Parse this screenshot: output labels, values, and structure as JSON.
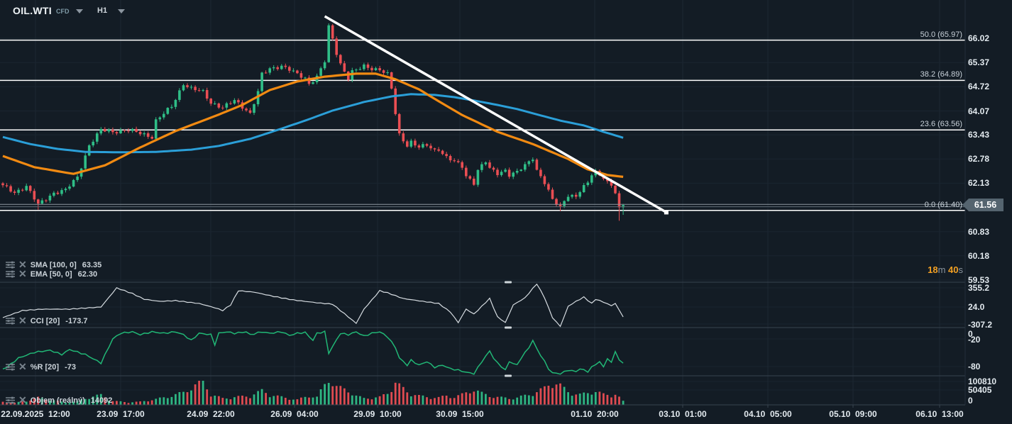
{
  "header": {
    "symbol": "OIL.WTI",
    "cfd_label": "CFD",
    "timeframe": "H1"
  },
  "indicators": {
    "sma": {
      "label": "SMA [100, 0]",
      "value": "63.35"
    },
    "ema": {
      "label": "EMA [50, 0]",
      "value": "62.30"
    },
    "cci": {
      "label": "CCI [20]",
      "value": "-173.7"
    },
    "wpr": {
      "label": "%R [20]",
      "value": "-73"
    },
    "volume": {
      "label": "Objem (reálný)",
      "value": "14092"
    }
  },
  "timer": {
    "min": "18",
    "min_unit": "m",
    "sec": " 40",
    "sec_unit": "s"
  },
  "price_axis": {
    "ticks": [
      "66.02",
      "65.37",
      "64.72",
      "64.07",
      "63.43",
      "62.78",
      "62.13",
      "60.83",
      "60.18",
      "59.53"
    ],
    "current_price": "61.56"
  },
  "cci_axis": [
    "355.2",
    "24.0",
    "-307.2"
  ],
  "wpr_axis": [
    "0",
    "-20",
    "-80"
  ],
  "volume_axis": [
    "100810",
    "50405",
    "0"
  ],
  "time_axis": [
    "22.09.2025  12:00",
    "23.09  17:00",
    "24.09  22:00",
    "26.09  04:00",
    "29.09  10:00",
    "30.09  15:00",
    "01.10  20:00",
    "03.10  01:00",
    "04.10  05:00",
    "05.10  09:00",
    "06.10  13:00"
  ],
  "colors": {
    "background": "#131c25",
    "up": "#2fbe87",
    "down": "#ea4e53",
    "ema": "#f18a12",
    "sma": "#2b9fd8",
    "trendline": "#ffffff",
    "fib": "#ffffff",
    "cci_line": "#d7dde2",
    "wpr_line": "#21b776",
    "grid": "#1d2833",
    "grid_faint": "#1a2530",
    "separator": "#37434e",
    "axis_text": "#e3eaef",
    "timer_accent": "#f2a023",
    "badge_bg": "#55646f",
    "price_line": "#8d97a0"
  },
  "chart_data": {
    "type": "candlestick",
    "symbol": "OIL.WTI",
    "timeframe": "H1",
    "bars": 159,
    "price_range": [
      59.2,
      66.5
    ],
    "close_path": [
      [
        0,
        62.06
      ],
      [
        3,
        61.87
      ],
      [
        6,
        62.06
      ],
      [
        9,
        61.55
      ],
      [
        13,
        61.87
      ],
      [
        16,
        61.95
      ],
      [
        19,
        62.29
      ],
      [
        22,
        63.15
      ],
      [
        25,
        63.56
      ],
      [
        28,
        63.51
      ],
      [
        32,
        63.56
      ],
      [
        35,
        63.47
      ],
      [
        38,
        63.37
      ],
      [
        39,
        63.81
      ],
      [
        43,
        64.19
      ],
      [
        46,
        64.8
      ],
      [
        48,
        64.67
      ],
      [
        51,
        64.58
      ],
      [
        53,
        64.29
      ],
      [
        56,
        64.16
      ],
      [
        59,
        64.35
      ],
      [
        62,
        64.1
      ],
      [
        63,
        64.0
      ],
      [
        65,
        64.58
      ],
      [
        66,
        65.05
      ],
      [
        68,
        65.2
      ],
      [
        71,
        65.28
      ],
      [
        73,
        65.18
      ],
      [
        75,
        65.05
      ],
      [
        77,
        64.95
      ],
      [
        78,
        64.8
      ],
      [
        80,
        64.99
      ],
      [
        82,
        65.4
      ],
      [
        83,
        66.32
      ],
      [
        84,
        66.0
      ],
      [
        85,
        65.62
      ],
      [
        86,
        65.33
      ],
      [
        88,
        64.95
      ],
      [
        89,
        65.12
      ],
      [
        91,
        65.21
      ],
      [
        92,
        65.27
      ],
      [
        94,
        65.21
      ],
      [
        96,
        65.18
      ],
      [
        98,
        65.05
      ],
      [
        99,
        64.67
      ],
      [
        100,
        64.0
      ],
      [
        101,
        63.43
      ],
      [
        103,
        63.15
      ],
      [
        104,
        63.24
      ],
      [
        106,
        63.09
      ],
      [
        108,
        63.15
      ],
      [
        110,
        63.01
      ],
      [
        111,
        63.05
      ],
      [
        113,
        62.82
      ],
      [
        115,
        62.71
      ],
      [
        117,
        62.58
      ],
      [
        118,
        62.33
      ],
      [
        120,
        62.14
      ],
      [
        121,
        62.48
      ],
      [
        123,
        62.71
      ],
      [
        124,
        62.52
      ],
      [
        126,
        62.4
      ],
      [
        128,
        62.48
      ],
      [
        129,
        62.35
      ],
      [
        131,
        62.42
      ],
      [
        132,
        62.52
      ],
      [
        134,
        62.71
      ],
      [
        135,
        62.82
      ],
      [
        136,
        62.48
      ],
      [
        138,
        62.14
      ],
      [
        139,
        61.91
      ],
      [
        140,
        61.68
      ],
      [
        142,
        61.49
      ],
      [
        143,
        61.66
      ],
      [
        144,
        61.82
      ],
      [
        146,
        61.76
      ],
      [
        147,
        61.91
      ],
      [
        149,
        62.14
      ],
      [
        150,
        62.38
      ],
      [
        151,
        62.44
      ],
      [
        153,
        62.29
      ],
      [
        154,
        62.14
      ],
      [
        155,
        62.06
      ],
      [
        156,
        61.87
      ],
      [
        157,
        61.43
      ],
      [
        158,
        61.56
      ]
    ],
    "wick_overrides": {
      "9": {
        "low": 61.42
      },
      "83": {
        "high": 66.42
      },
      "142": {
        "low": 61.38
      },
      "157": {
        "low": 61.12
      },
      "158": {
        "low": 61.28
      }
    },
    "sma100": [
      [
        0,
        63.37
      ],
      [
        7,
        63.18
      ],
      [
        14,
        63.05
      ],
      [
        21,
        62.97
      ],
      [
        30,
        62.96
      ],
      [
        39,
        62.97
      ],
      [
        48,
        63.03
      ],
      [
        55,
        63.13
      ],
      [
        63,
        63.32
      ],
      [
        70,
        63.56
      ],
      [
        77,
        63.81
      ],
      [
        84,
        64.08
      ],
      [
        92,
        64.31
      ],
      [
        99,
        64.46
      ],
      [
        104,
        64.52
      ],
      [
        110,
        64.5
      ],
      [
        115,
        64.44
      ],
      [
        120,
        64.35
      ],
      [
        126,
        64.23
      ],
      [
        131,
        64.12
      ],
      [
        137,
        63.95
      ],
      [
        142,
        63.81
      ],
      [
        148,
        63.68
      ],
      [
        153,
        63.51
      ],
      [
        158,
        63.35
      ]
    ],
    "ema50": [
      [
        0,
        62.86
      ],
      [
        8,
        62.56
      ],
      [
        18,
        62.38
      ],
      [
        26,
        62.61
      ],
      [
        35,
        63.09
      ],
      [
        44,
        63.53
      ],
      [
        54,
        63.93
      ],
      [
        61,
        64.23
      ],
      [
        68,
        64.63
      ],
      [
        75,
        64.86
      ],
      [
        82,
        64.99
      ],
      [
        90,
        65.07
      ],
      [
        95,
        65.07
      ],
      [
        100,
        64.92
      ],
      [
        106,
        64.65
      ],
      [
        111,
        64.33
      ],
      [
        117,
        63.96
      ],
      [
        126,
        63.51
      ],
      [
        135,
        63.18
      ],
      [
        144,
        62.78
      ],
      [
        149,
        62.5
      ],
      [
        154,
        62.35
      ],
      [
        158,
        62.3
      ]
    ],
    "trendline": {
      "from": [
        82,
        66.61
      ],
      "to": [
        169,
        61.35
      ]
    },
    "fib_levels": [
      {
        "label": "50.0 (65.97)",
        "price": 65.97
      },
      {
        "label": "38.2 (64.89)",
        "price": 64.89
      },
      {
        "label": "23.6 (63.56)",
        "price": 63.56
      },
      {
        "label": "0.0 (61.40)",
        "price": 61.4
      }
    ],
    "cci": {
      "period": 20,
      "last": -173.7,
      "points": [
        [
          0,
          -190
        ],
        [
          1,
          -164
        ],
        [
          5,
          -60
        ],
        [
          10,
          -35
        ],
        [
          17,
          -35
        ],
        [
          25,
          5
        ],
        [
          29,
          355
        ],
        [
          33,
          251
        ],
        [
          36,
          147
        ],
        [
          40,
          108
        ],
        [
          44,
          121
        ],
        [
          50,
          69
        ],
        [
          54,
          -9
        ],
        [
          56,
          -60
        ],
        [
          58,
          43
        ],
        [
          60,
          303
        ],
        [
          64,
          277
        ],
        [
          69,
          199
        ],
        [
          74,
          134
        ],
        [
          80,
          82
        ],
        [
          84,
          56
        ],
        [
          88,
          -177
        ],
        [
          90,
          -294
        ],
        [
          92,
          -35
        ],
        [
          96,
          303
        ],
        [
          98,
          264
        ],
        [
          102,
          160
        ],
        [
          107,
          108
        ],
        [
          111,
          69
        ],
        [
          114,
          -87
        ],
        [
          116,
          -281
        ],
        [
          118,
          -35
        ],
        [
          120,
          -125
        ],
        [
          124,
          160
        ],
        [
          126,
          -177
        ],
        [
          128,
          -281
        ],
        [
          130,
          43
        ],
        [
          133,
          173
        ],
        [
          136,
          430
        ],
        [
          138,
          173
        ],
        [
          140,
          -190
        ],
        [
          142,
          -350
        ],
        [
          144,
          17
        ],
        [
          146,
          108
        ],
        [
          148,
          186
        ],
        [
          150,
          69
        ],
        [
          151,
          147
        ],
        [
          153,
          95
        ],
        [
          155,
          30
        ],
        [
          156,
          69
        ],
        [
          158,
          -173.7
        ]
      ]
    },
    "williams_r": {
      "period": 20,
      "last": -73,
      "points": [
        [
          0,
          -85
        ],
        [
          1,
          -81.5
        ],
        [
          4,
          -61.5
        ],
        [
          8,
          -49.2
        ],
        [
          12,
          -44.6
        ],
        [
          15,
          -53.8
        ],
        [
          17,
          -43.1
        ],
        [
          21,
          -53.8
        ],
        [
          25,
          -72.3
        ],
        [
          28,
          -20
        ],
        [
          30,
          -7.7
        ],
        [
          33,
          -4.6
        ],
        [
          35,
          -10.8
        ],
        [
          38,
          -4.6
        ],
        [
          41,
          -7.7
        ],
        [
          44,
          -4.6
        ],
        [
          46,
          -10.8
        ],
        [
          48,
          -23.1
        ],
        [
          50,
          -7.7
        ],
        [
          53,
          -10.8
        ],
        [
          54,
          -32.3
        ],
        [
          55,
          -7.7
        ],
        [
          57,
          -4.6
        ],
        [
          59,
          -7.7
        ],
        [
          62,
          -4.6
        ],
        [
          63,
          -10.8
        ],
        [
          66,
          -4.6
        ],
        [
          68,
          -7.7
        ],
        [
          71,
          -4.6
        ],
        [
          73,
          -12.3
        ],
        [
          75,
          -7.7
        ],
        [
          77,
          -6.2
        ],
        [
          79,
          -23.1
        ],
        [
          80,
          -7.7
        ],
        [
          82,
          -4.6
        ],
        [
          83,
          -50.8
        ],
        [
          86,
          -7.7
        ],
        [
          88,
          -10.8
        ],
        [
          90,
          -4.6
        ],
        [
          92,
          -13.8
        ],
        [
          94,
          -7.7
        ],
        [
          96,
          -4.6
        ],
        [
          98,
          -15.4
        ],
        [
          100,
          -38.5
        ],
        [
          101,
          -61.5
        ],
        [
          103,
          -76.9
        ],
        [
          104,
          -66.2
        ],
        [
          106,
          -76.9
        ],
        [
          108,
          -69.2
        ],
        [
          110,
          -81.5
        ],
        [
          112,
          -76.9
        ],
        [
          114,
          -84.6
        ],
        [
          116,
          -87.7
        ],
        [
          118,
          -92.3
        ],
        [
          120,
          -95.4
        ],
        [
          122,
          -69.2
        ],
        [
          124,
          -46.2
        ],
        [
          125,
          -61.5
        ],
        [
          126,
          -72.3
        ],
        [
          128,
          -87.7
        ],
        [
          129,
          -69.2
        ],
        [
          131,
          -76.9
        ],
        [
          132,
          -61.5
        ],
        [
          134,
          -38.5
        ],
        [
          135,
          -23.1
        ],
        [
          136,
          -41.5
        ],
        [
          138,
          -69.2
        ],
        [
          139,
          -84.6
        ],
        [
          140,
          -93.8
        ],
        [
          142,
          -95.4
        ],
        [
          144,
          -87.7
        ],
        [
          146,
          -90.8
        ],
        [
          147,
          -84.6
        ],
        [
          149,
          -90.8
        ],
        [
          150,
          -81.5
        ],
        [
          152,
          -69.2
        ],
        [
          153,
          -81.5
        ],
        [
          154,
          -61.5
        ],
        [
          155,
          -72.3
        ],
        [
          156,
          -46.2
        ],
        [
          157,
          -66.2
        ],
        [
          158,
          -73
        ]
      ]
    },
    "volume": {
      "last": 14092,
      "max": 100810,
      "points": [
        [
          0,
          12000
        ],
        [
          3,
          8000
        ],
        [
          6,
          15000
        ],
        [
          9,
          28000
        ],
        [
          12,
          20000
        ],
        [
          16,
          9000
        ],
        [
          19,
          14000
        ],
        [
          22,
          30000
        ],
        [
          25,
          38000
        ],
        [
          28,
          15000
        ],
        [
          32,
          10000
        ],
        [
          35,
          12000
        ],
        [
          39,
          22000
        ],
        [
          43,
          35000
        ],
        [
          46,
          48000
        ],
        [
          51,
          95000
        ],
        [
          53,
          40000
        ],
        [
          56,
          25000
        ],
        [
          59,
          30000
        ],
        [
          63,
          35000
        ],
        [
          66,
          55000
        ],
        [
          68,
          40000
        ],
        [
          71,
          30000
        ],
        [
          73,
          25000
        ],
        [
          75,
          20000
        ],
        [
          78,
          35000
        ],
        [
          80,
          30000
        ],
        [
          83,
          100810
        ],
        [
          85,
          70000
        ],
        [
          88,
          55000
        ],
        [
          90,
          35000
        ],
        [
          92,
          25000
        ],
        [
          96,
          30000
        ],
        [
          98,
          45000
        ],
        [
          100,
          88000
        ],
        [
          101,
          75000
        ],
        [
          103,
          50000
        ],
        [
          106,
          35000
        ],
        [
          108,
          30000
        ],
        [
          111,
          28000
        ],
        [
          113,
          35000
        ],
        [
          115,
          30000
        ],
        [
          117,
          40000
        ],
        [
          120,
          60000
        ],
        [
          122,
          45000
        ],
        [
          124,
          35000
        ],
        [
          126,
          30000
        ],
        [
          129,
          25000
        ],
        [
          131,
          28000
        ],
        [
          134,
          40000
        ],
        [
          136,
          50000
        ],
        [
          138,
          65000
        ],
        [
          140,
          90000
        ],
        [
          142,
          75000
        ],
        [
          144,
          50000
        ],
        [
          147,
          40000
        ],
        [
          149,
          45000
        ],
        [
          151,
          55000
        ],
        [
          153,
          40000
        ],
        [
          155,
          35000
        ],
        [
          156,
          45000
        ],
        [
          157,
          30000
        ],
        [
          158,
          14092
        ]
      ]
    }
  }
}
